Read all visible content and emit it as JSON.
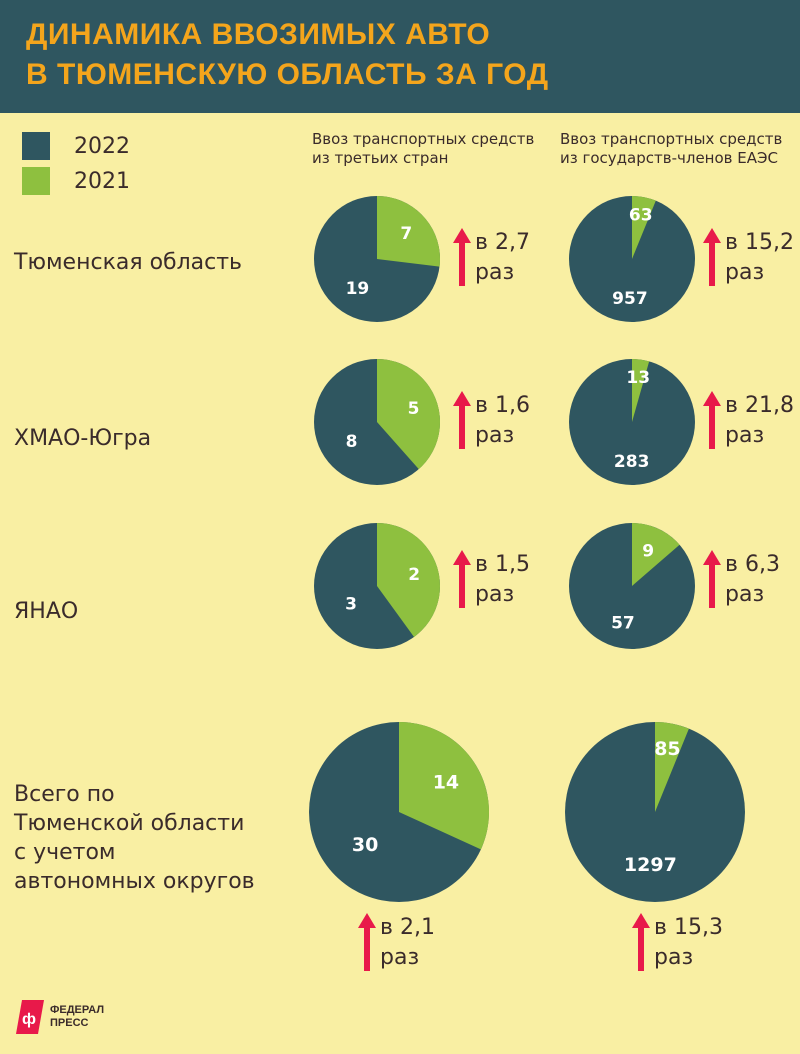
{
  "header": {
    "line1": "ДИНАМИКА ВВОЗИМЫХ АВТО",
    "line2": "В ТЮМЕНСКУЮ ОБЛАСТЬ ЗА ГОД"
  },
  "legend": {
    "items": [
      {
        "label": "2022",
        "color": "#2f5660"
      },
      {
        "label": "2021",
        "color": "#8ec03f"
      }
    ]
  },
  "columns": {
    "third": {
      "line1": "Ввоз транспортных средств",
      "line2": "из третьих стран"
    },
    "eaeu": {
      "line1": "Ввоз транспортных средств",
      "line2": "из государств-членов ЕАЭС"
    }
  },
  "rows": [
    {
      "label": "Тюменская область"
    },
    {
      "label": "ХМАО-Югра"
    },
    {
      "label": "ЯНАО"
    },
    {
      "label_lines": [
        "Всего по",
        "Тюменской области",
        "с учетом",
        "автономных округов"
      ]
    }
  ],
  "growth": [
    {
      "third_line1": "в 2,7",
      "third_line2": "раз",
      "eaeu_line1": "в 15,2",
      "eaeu_line2": "раз"
    },
    {
      "third_line1": "в 1,6",
      "third_line2": "раз",
      "eaeu_line1": "в 21,8",
      "eaeu_line2": "раз"
    },
    {
      "third_line1": "в 1,5",
      "third_line2": "раз",
      "eaeu_line1": "в 6,3",
      "eaeu_line2": "раз"
    },
    {
      "third_line1": "в 2,1",
      "third_line2": "раз",
      "eaeu_line1": "в 15,3",
      "eaeu_line2": "раз"
    }
  ],
  "chart_data": [
    {
      "type": "pie",
      "title": "Тюменская область — из третьих стран",
      "labels": [
        "2022",
        "2021"
      ],
      "values": [
        19,
        7
      ],
      "colors": [
        "#2f5660",
        "#8ec03f"
      ]
    },
    {
      "type": "pie",
      "title": "Тюменская область — из государств-членов ЕАЭС",
      "labels": [
        "2022",
        "2021"
      ],
      "values": [
        957,
        63
      ],
      "colors": [
        "#2f5660",
        "#8ec03f"
      ]
    },
    {
      "type": "pie",
      "title": "ХМАО-Югра — из третьих стран",
      "labels": [
        "2022",
        "2021"
      ],
      "values": [
        8,
        5
      ],
      "colors": [
        "#2f5660",
        "#8ec03f"
      ]
    },
    {
      "type": "pie",
      "title": "ХМАО-Югра — из государств-членов ЕАЭС",
      "labels": [
        "2022",
        "2021"
      ],
      "values": [
        283,
        13
      ],
      "colors": [
        "#2f5660",
        "#8ec03f"
      ]
    },
    {
      "type": "pie",
      "title": "ЯНАО — из третьих стран",
      "labels": [
        "2022",
        "2021"
      ],
      "values": [
        3,
        2
      ],
      "colors": [
        "#2f5660",
        "#8ec03f"
      ]
    },
    {
      "type": "pie",
      "title": "ЯНАО — из государств-членов ЕАЭС",
      "labels": [
        "2022",
        "2021"
      ],
      "values": [
        57,
        9
      ],
      "colors": [
        "#2f5660",
        "#8ec03f"
      ]
    },
    {
      "type": "pie",
      "title": "Всего по Тюменской области — из третьих стран",
      "labels": [
        "2022",
        "2021"
      ],
      "values": [
        30,
        14
      ],
      "colors": [
        "#2f5660",
        "#8ec03f"
      ]
    },
    {
      "type": "pie",
      "title": "Всего по Тюменской области — из государств-членов ЕАЭС",
      "labels": [
        "2022",
        "2021"
      ],
      "values": [
        1297,
        85
      ],
      "colors": [
        "#2f5660",
        "#8ec03f"
      ]
    }
  ],
  "footer": {
    "logo_line1": "ФЕДЕРАЛ",
    "logo_line2": "ПРЕСС"
  },
  "accent": {
    "arrow": "#e8194a",
    "label_text": "#ffffff"
  }
}
